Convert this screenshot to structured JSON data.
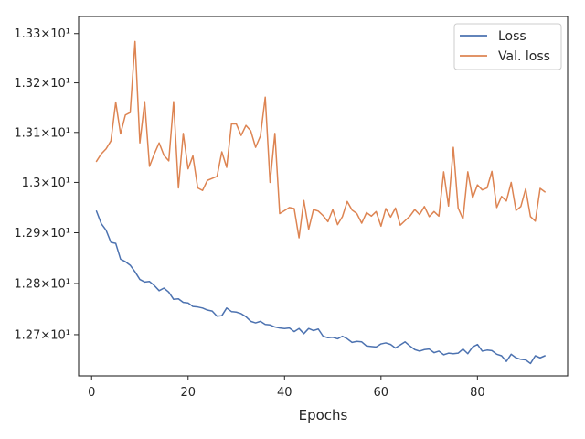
{
  "chart_data": {
    "type": "line",
    "title": "",
    "xlabel": "Epochs",
    "ylabel": "",
    "xlim": [
      -2.7,
      98.7
    ],
    "ylim": [
      12.62,
      13.335
    ],
    "y_scale": "log",
    "grid": false,
    "legend_position": "top-right",
    "x_ticks": [
      0,
      20,
      40,
      60,
      80
    ],
    "x_tick_labels": [
      "0",
      "20",
      "40",
      "60",
      "80"
    ],
    "y_ticks": [
      12.7,
      12.8,
      12.9,
      13.0,
      13.1,
      13.2,
      13.3
    ],
    "y_tick_labels": [
      "1.27×10¹",
      "1.28×10¹",
      "1.29×10¹",
      "1.3×10¹",
      "1.31×10¹",
      "1.32×10¹",
      "1.33×10¹"
    ],
    "x": [
      1,
      2,
      3,
      4,
      5,
      6,
      7,
      8,
      9,
      10,
      11,
      12,
      13,
      14,
      15,
      16,
      17,
      18,
      19,
      20,
      21,
      22,
      23,
      24,
      25,
      26,
      27,
      28,
      29,
      30,
      31,
      32,
      33,
      34,
      35,
      36,
      37,
      38,
      39,
      40,
      41,
      42,
      43,
      44,
      45,
      46,
      47,
      48,
      49,
      50,
      51,
      52,
      53,
      54,
      55,
      56,
      57,
      58,
      59,
      60,
      61,
      62,
      63,
      64,
      65,
      66,
      67,
      68,
      69,
      70,
      71,
      72,
      73,
      74,
      75,
      76,
      77,
      78,
      79,
      80,
      81,
      82,
      83,
      84,
      85,
      86,
      87,
      88,
      89,
      90,
      91,
      92,
      93,
      94
    ],
    "series": [
      {
        "name": "Loss",
        "color": "#4c72b0",
        "values": [
          12.943,
          12.918,
          12.905,
          12.881,
          12.879,
          12.848,
          12.843,
          12.836,
          12.823,
          12.808,
          12.803,
          12.804,
          12.796,
          12.786,
          12.791,
          12.783,
          12.769,
          12.77,
          12.763,
          12.762,
          12.755,
          12.754,
          12.752,
          12.748,
          12.746,
          12.736,
          12.737,
          12.752,
          12.745,
          12.744,
          12.741,
          12.735,
          12.726,
          12.723,
          12.726,
          12.72,
          12.719,
          12.715,
          12.713,
          12.712,
          12.713,
          12.706,
          12.712,
          12.702,
          12.712,
          12.708,
          12.711,
          12.697,
          12.694,
          12.695,
          12.692,
          12.697,
          12.692,
          12.685,
          12.687,
          12.686,
          12.678,
          12.677,
          12.676,
          12.682,
          12.684,
          12.681,
          12.674,
          12.68,
          12.686,
          12.678,
          12.671,
          12.668,
          12.671,
          12.672,
          12.665,
          12.668,
          12.661,
          12.664,
          12.663,
          12.664,
          12.672,
          12.663,
          12.676,
          12.681,
          12.668,
          12.67,
          12.669,
          12.662,
          12.659,
          12.648,
          12.662,
          12.655,
          12.652,
          12.651,
          12.644,
          12.659,
          12.655,
          12.659
        ]
      },
      {
        "name": "Val. loss",
        "color": "#dd8452",
        "values": [
          13.042,
          13.057,
          13.067,
          13.083,
          13.161,
          13.097,
          13.135,
          13.14,
          13.284,
          13.079,
          13.162,
          13.032,
          13.057,
          13.079,
          13.054,
          13.043,
          13.162,
          12.989,
          13.098,
          13.027,
          13.053,
          12.989,
          12.984,
          13.004,
          13.008,
          13.012,
          13.061,
          13.03,
          13.117,
          13.117,
          13.094,
          13.114,
          13.103,
          13.07,
          13.093,
          13.171,
          13.0,
          13.098,
          12.938,
          12.944,
          12.95,
          12.948,
          12.89,
          12.964,
          12.907,
          12.946,
          12.943,
          12.934,
          12.922,
          12.946,
          12.916,
          12.932,
          12.962,
          12.945,
          12.938,
          12.919,
          12.94,
          12.933,
          12.942,
          12.913,
          12.948,
          12.931,
          12.949,
          12.915,
          12.924,
          12.933,
          12.946,
          12.936,
          12.952,
          12.932,
          12.942,
          12.933,
          13.021,
          12.953,
          13.07,
          12.949,
          12.927,
          13.021,
          12.969,
          12.995,
          12.985,
          12.989,
          13.022,
          12.95,
          12.972,
          12.963,
          13.0,
          12.944,
          12.952,
          12.987,
          12.932,
          12.923,
          12.988,
          12.981
        ]
      }
    ]
  }
}
